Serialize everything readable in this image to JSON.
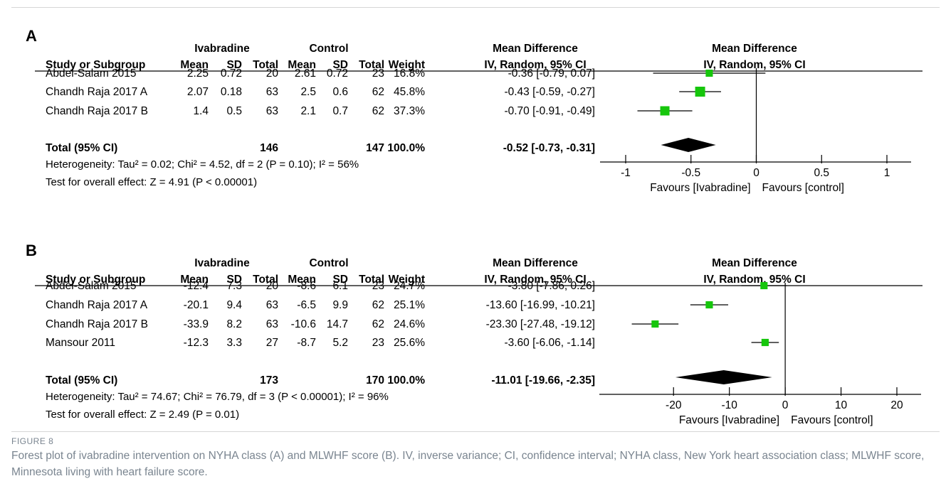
{
  "figure_label": "FIGURE 8",
  "caption": "Forest plot of ivabradine intervention on NYHA class (A) and MLWHF score (B). IV, inverse variance; CI, confidence interval; NYHA class, New York heart association class; MLWHF score, Minnesota living with heart failure score.",
  "colors": {
    "marker": "#16c60c",
    "diamond": "#000000",
    "line": "#000000"
  },
  "headers": {
    "group_ivabradine": "Ivabradine",
    "group_control": "Control",
    "md_title": "Mean Difference",
    "md_method": "IV, Random, 95% CI",
    "plot_title": "Mean Difference",
    "plot_method": "IV, Random, 95% CI",
    "study": "Study or Subgroup",
    "mean": "Mean",
    "sd": "SD",
    "total": "Total",
    "weight": "Weight"
  },
  "chart_data": [
    {
      "type": "forest",
      "panel": "A",
      "xlim": [
        -1.0,
        1.0
      ],
      "xticks": [
        -1,
        -0.5,
        0,
        0.5,
        1
      ],
      "xtick_labels": [
        "-1",
        "-0.5",
        "0",
        "0.5",
        "1"
      ],
      "favours_left": "Favours [Ivabradine]",
      "favours_right": "Favours [control]",
      "studies": [
        {
          "name": "Abdel-Salam 2015",
          "iv_mean": "2.25",
          "iv_sd": "0.72",
          "iv_total": "20",
          "c_mean": "2.61",
          "c_sd": "0.72",
          "c_total": "23",
          "weight": "16.8%",
          "md_text": "-0.36 [-0.79, 0.07]",
          "md": -0.36,
          "lo": -0.79,
          "hi": 0.07,
          "w": 16.8
        },
        {
          "name": "Chandh Raja 2017 A",
          "iv_mean": "2.07",
          "iv_sd": "0.18",
          "iv_total": "63",
          "c_mean": "2.5",
          "c_sd": "0.6",
          "c_total": "62",
          "weight": "45.8%",
          "md_text": "-0.43 [-0.59, -0.27]",
          "md": -0.43,
          "lo": -0.59,
          "hi": -0.27,
          "w": 45.8
        },
        {
          "name": "Chandh Raja 2017 B",
          "iv_mean": "1.4",
          "iv_sd": "0.5",
          "iv_total": "63",
          "c_mean": "2.1",
          "c_sd": "0.7",
          "c_total": "62",
          "weight": "37.3%",
          "md_text": "-0.70 [-0.91, -0.49]",
          "md": -0.7,
          "lo": -0.91,
          "hi": -0.49,
          "w": 37.3
        }
      ],
      "total": {
        "label": "Total (95% CI)",
        "iv_total": "146",
        "c_total": "147",
        "weight": "100.0%",
        "md_text": "-0.52 [-0.73, -0.31]",
        "md": -0.52,
        "lo": -0.73,
        "hi": -0.31
      },
      "heterogeneity": "Heterogeneity: Tau² = 0.02; Chi² = 4.52, df = 2 (P = 0.10); I² = 56%",
      "overall_effect": "Test for overall effect: Z = 4.91 (P < 0.00001)"
    },
    {
      "type": "forest",
      "panel": "B",
      "xlim": [
        -28.7,
        20.0
      ],
      "xticks": [
        -20,
        -10,
        0,
        10,
        20
      ],
      "xtick_labels": [
        "-20",
        "-10",
        "0",
        "10",
        "20"
      ],
      "favours_left": "Favours [Ivabradine]",
      "favours_right": "Favours [control]",
      "studies": [
        {
          "name": "Abdel-Salam 2015",
          "iv_mean": "-12.4",
          "iv_sd": "7.3",
          "iv_total": "20",
          "c_mean": "-8.6",
          "c_sd": "6.1",
          "c_total": "23",
          "weight": "24.7%",
          "md_text": "-3.80 [-7.86, 0.26]",
          "md": -3.8,
          "lo": -7.86,
          "hi": 0.26,
          "w": 24.7
        },
        {
          "name": "Chandh Raja 2017 A",
          "iv_mean": "-20.1",
          "iv_sd": "9.4",
          "iv_total": "63",
          "c_mean": "-6.5",
          "c_sd": "9.9",
          "c_total": "62",
          "weight": "25.1%",
          "md_text": "-13.60 [-16.99, -10.21]",
          "md": -13.6,
          "lo": -16.99,
          "hi": -10.21,
          "w": 25.1
        },
        {
          "name": "Chandh Raja 2017 B",
          "iv_mean": "-33.9",
          "iv_sd": "8.2",
          "iv_total": "63",
          "c_mean": "-10.6",
          "c_sd": "14.7",
          "c_total": "62",
          "weight": "24.6%",
          "md_text": "-23.30 [-27.48, -19.12]",
          "md": -23.3,
          "lo": -27.48,
          "hi": -19.12,
          "w": 24.6
        },
        {
          "name": "Mansour 2011",
          "iv_mean": "-12.3",
          "iv_sd": "3.3",
          "iv_total": "27",
          "c_mean": "-8.7",
          "c_sd": "5.2",
          "c_total": "23",
          "weight": "25.6%",
          "md_text": "-3.60 [-6.06, -1.14]",
          "md": -3.6,
          "lo": -6.06,
          "hi": -1.14,
          "w": 25.6
        }
      ],
      "total": {
        "label": "Total (95% CI)",
        "iv_total": "173",
        "c_total": "170",
        "weight": "100.0%",
        "md_text": "-11.01 [-19.66, -2.35]",
        "md": -11.01,
        "lo": -19.66,
        "hi": -2.35
      },
      "heterogeneity": "Heterogeneity: Tau² = 74.67; Chi² = 76.79, df = 3 (P < 0.00001); I² = 96%",
      "overall_effect": "Test for overall effect: Z = 2.49 (P = 0.01)"
    }
  ]
}
